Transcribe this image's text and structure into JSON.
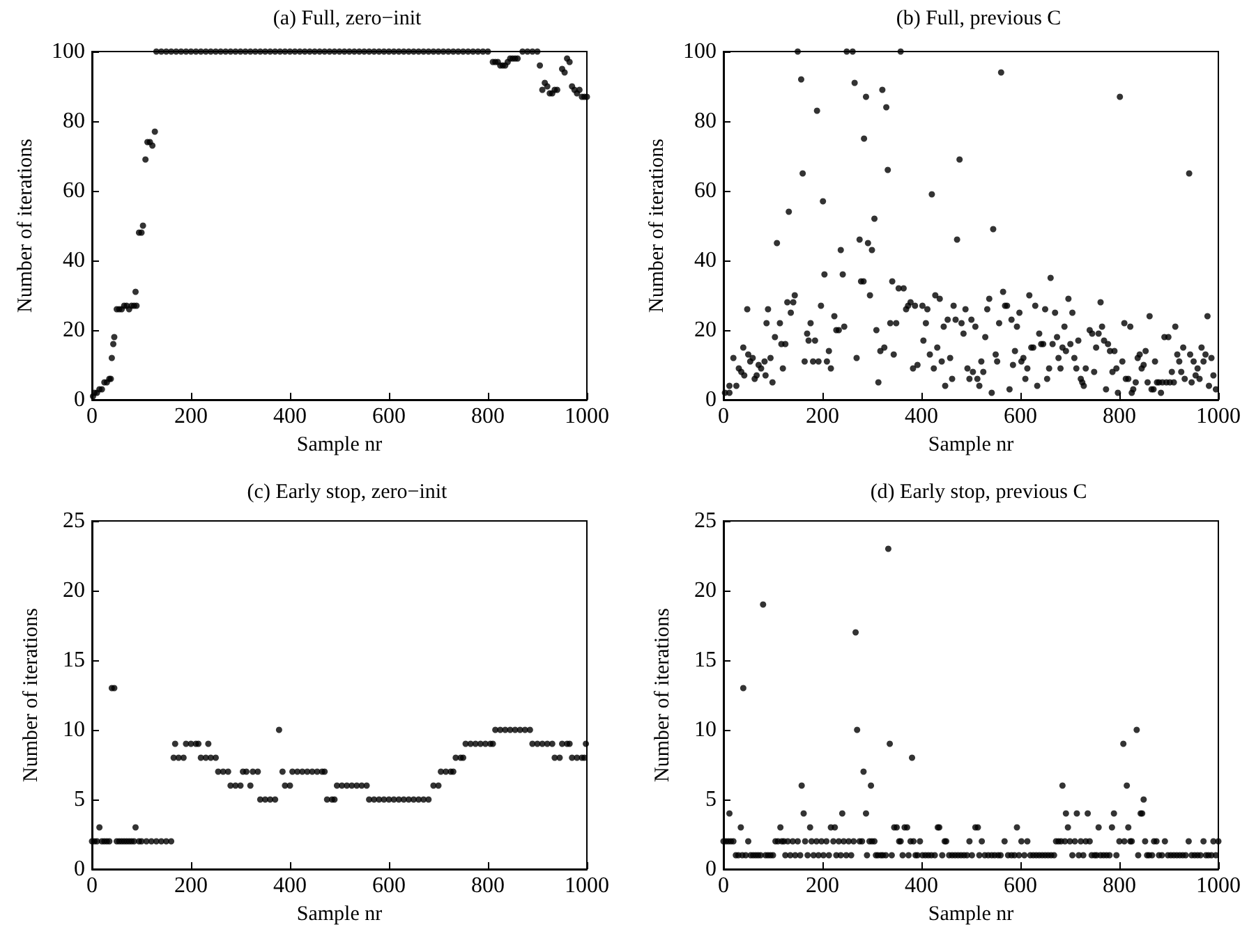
{
  "chart_data": [
    {
      "type": "scatter",
      "title": "(a) Full, zero−init",
      "xlabel": "Sample nr",
      "ylabel": "Number of iterations",
      "marker": "circle",
      "xlim": [
        0,
        1000
      ],
      "xticks": [
        0,
        200,
        400,
        600,
        800,
        1000
      ],
      "ylim": [
        0,
        100
      ],
      "yticks": [
        0,
        20,
        40,
        60,
        80,
        100
      ],
      "series": [
        {
          "color": "#000000",
          "x": [
            2,
            5,
            10,
            15,
            20,
            25,
            30,
            35,
            38,
            40,
            43,
            45,
            50,
            55,
            60,
            65,
            70,
            75,
            80,
            85,
            88,
            90,
            95,
            100,
            103,
            108,
            112,
            117,
            122,
            127,
            130,
            140,
            150,
            160,
            170,
            180,
            190,
            200,
            210,
            220,
            230,
            240,
            250,
            260,
            270,
            280,
            290,
            300,
            310,
            320,
            330,
            340,
            350,
            360,
            370,
            380,
            390,
            400,
            410,
            420,
            430,
            440,
            450,
            460,
            470,
            480,
            490,
            500,
            510,
            520,
            530,
            540,
            550,
            560,
            570,
            580,
            590,
            600,
            610,
            620,
            630,
            640,
            650,
            660,
            670,
            680,
            690,
            700,
            710,
            720,
            730,
            740,
            750,
            760,
            770,
            780,
            790,
            800,
            810,
            815,
            820,
            825,
            830,
            835,
            840,
            845,
            850,
            855,
            860,
            870,
            880,
            890,
            900,
            905,
            910,
            915,
            920,
            925,
            930,
            935,
            940,
            950,
            955,
            960,
            965,
            970,
            975,
            980,
            985,
            990,
            995,
            1000
          ],
          "values": [
            1,
            2,
            2,
            3,
            3,
            5,
            5,
            6,
            6,
            12,
            16,
            18,
            26,
            26,
            26,
            27,
            27,
            26,
            27,
            27,
            31,
            27,
            48,
            48,
            50,
            69,
            74,
            74,
            73,
            77,
            100,
            100,
            100,
            100,
            100,
            100,
            100,
            100,
            100,
            100,
            100,
            100,
            100,
            100,
            100,
            100,
            100,
            100,
            100,
            100,
            100,
            100,
            100,
            100,
            100,
            100,
            100,
            100,
            100,
            100,
            100,
            100,
            100,
            100,
            100,
            100,
            100,
            100,
            100,
            100,
            100,
            100,
            100,
            100,
            100,
            100,
            100,
            100,
            100,
            100,
            100,
            100,
            100,
            100,
            100,
            100,
            100,
            100,
            100,
            100,
            100,
            100,
            100,
            100,
            100,
            100,
            100,
            100,
            97,
            97,
            97,
            96,
            96,
            96,
            97,
            98,
            98,
            98,
            98,
            100,
            100,
            100,
            100,
            96,
            89,
            91,
            90,
            88,
            88,
            89,
            89,
            95,
            94,
            98,
            97,
            90,
            89,
            88,
            89,
            87,
            87,
            87
          ]
        }
      ]
    },
    {
      "type": "scatter",
      "title": "(b) Full, previous C",
      "xlabel": "Sample nr",
      "ylabel": "Number of iterations",
      "marker": "circle",
      "xlim": [
        0,
        1000
      ],
      "xticks": [
        0,
        200,
        400,
        600,
        800,
        1000
      ],
      "ylim": [
        0,
        100
      ],
      "yticks": [
        0,
        20,
        40,
        60,
        80,
        100
      ],
      "series": [
        {
          "color": "#000000",
          "x": [
            3,
            12,
            12,
            20,
            26,
            31,
            36,
            40,
            42,
            48,
            50,
            54,
            59,
            63,
            67,
            71,
            76,
            83,
            85,
            87,
            90,
            95,
            99,
            104,
            108,
            114,
            117,
            125,
            120,
            129,
            132,
            136,
            141,
            144,
            150,
            157,
            160,
            164,
            169,
            172,
            176,
            181,
            185,
            189,
            192,
            197,
            201,
            204,
            209,
            213,
            217,
            224,
            228,
            233,
            237,
            241,
            244,
            249,
            261,
            265,
            269,
            275,
            278,
            283,
            284,
            288,
            292,
            296,
            300,
            305,
            309,
            313,
            317,
            321,
            325,
            329,
            332,
            337,
            341,
            344,
            349,
            354,
            358,
            364,
            369,
            373,
            378,
            383,
            387,
            392,
            402,
            404,
            409,
            412,
            417,
            421,
            425,
            428,
            432,
            437,
            441,
            445,
            448,
            453,
            458,
            462,
            465,
            469,
            472,
            477,
            481,
            485,
            489,
            493,
            497,
            501,
            504,
            509,
            513,
            517,
            521,
            525,
            529,
            533,
            537,
            542,
            545,
            550,
            553,
            557,
            561,
            565,
            569,
            573,
            578,
            582,
            585,
            589,
            593,
            598,
            602,
            606,
            610,
            614,
            618,
            622,
            626,
            630,
            634,
            638,
            642,
            646,
            650,
            654,
            658,
            661,
            665,
            670,
            674,
            677,
            681,
            685,
            689,
            692,
            697,
            701,
            705,
            709,
            713,
            717,
            722,
            725,
            728,
            732,
            740,
            745,
            749,
            753,
            758,
            762,
            765,
            769,
            773,
            777,
            781,
            786,
            790,
            794,
            797,
            801,
            806,
            810,
            813,
            818,
            822,
            825,
            828,
            833,
            837,
            841,
            845,
            849,
            853,
            857,
            861,
            865,
            869,
            872,
            876,
            880,
            884,
            887,
            891,
            895,
            899,
            902,
            906,
            910,
            913,
            917,
            921,
            925,
            929,
            932,
            941,
            943,
            946,
            950,
            954,
            958,
            962,
            966,
            970,
            974,
            978,
            981,
            986,
            990,
            995
          ],
          "values": [
            2,
            2,
            4,
            12,
            4,
            9,
            8,
            15,
            7,
            26,
            13,
            11,
            12,
            6,
            7,
            10,
            9,
            11,
            7,
            22,
            26,
            12,
            5,
            18,
            45,
            22,
            16,
            16,
            9,
            28,
            54,
            25,
            28,
            30,
            100,
            92,
            65,
            11,
            19,
            17,
            22,
            11,
            17,
            83,
            11,
            27,
            57,
            36,
            11,
            14,
            9,
            24,
            20,
            20,
            43,
            36,
            21,
            100,
            100,
            91,
            12,
            46,
            34,
            34,
            75,
            87,
            45,
            30,
            43,
            52,
            20,
            5,
            14,
            89,
            15,
            84,
            66,
            22,
            34,
            13,
            22,
            32,
            100,
            32,
            26,
            27,
            28,
            9,
            27,
            10,
            27,
            17,
            22,
            26,
            13,
            59,
            9,
            30,
            15,
            29,
            11,
            21,
            4,
            23,
            12,
            6,
            27,
            23,
            46,
            69,
            22,
            19,
            26,
            9,
            6,
            23,
            8,
            21,
            6,
            4,
            11,
            8,
            18,
            26,
            29,
            2,
            49,
            13,
            11,
            22,
            94,
            31,
            27,
            27,
            3,
            23,
            10,
            14,
            21,
            25,
            11,
            12,
            6,
            9,
            30,
            15,
            15,
            27,
            4,
            19,
            16,
            16,
            26,
            6,
            9,
            35,
            16,
            25,
            18,
            12,
            9,
            15,
            21,
            14,
            29,
            16,
            25,
            12,
            9,
            17,
            6,
            5,
            4,
            9,
            20,
            19,
            8,
            15,
            19,
            28,
            21,
            17,
            3,
            16,
            14,
            8,
            14,
            9,
            2,
            87,
            11,
            22,
            6,
            6,
            21,
            2,
            3,
            5,
            12,
            13,
            9,
            10,
            14,
            5,
            24,
            3,
            3,
            11,
            5,
            5,
            2,
            5,
            18,
            5,
            18,
            5,
            8,
            5,
            21,
            13,
            11,
            8,
            15,
            6,
            65,
            13,
            5,
            11,
            7,
            9,
            6,
            15,
            11,
            13,
            24,
            4,
            12,
            7,
            3
          ]
        }
      ]
    },
    {
      "type": "scatter",
      "title": "(c) Early stop, zero−init",
      "xlabel": "Sample nr",
      "ylabel": "Number of iterations",
      "marker": "circle",
      "xlim": [
        0,
        1000
      ],
      "xticks": [
        0,
        200,
        400,
        600,
        800,
        1000
      ],
      "ylim": [
        0,
        25
      ],
      "yticks": [
        0,
        5,
        10,
        15,
        20,
        25
      ],
      "series": [
        {
          "color": "#000000",
          "x": [
            0,
            5,
            10,
            15,
            20,
            25,
            30,
            35,
            40,
            45,
            50,
            55,
            60,
            65,
            70,
            75,
            80,
            85,
            88,
            95,
            100,
            110,
            120,
            130,
            140,
            150,
            160,
            165,
            168,
            175,
            185,
            190,
            200,
            210,
            215,
            220,
            230,
            235,
            240,
            250,
            255,
            265,
            275,
            280,
            290,
            300,
            305,
            312,
            320,
            325,
            335,
            340,
            350,
            360,
            370,
            378,
            385,
            390,
            400,
            405,
            415,
            425,
            435,
            445,
            455,
            465,
            470,
            475,
            485,
            490,
            495,
            505,
            515,
            525,
            535,
            545,
            555,
            560,
            570,
            580,
            590,
            600,
            610,
            620,
            630,
            640,
            650,
            660,
            670,
            680,
            690,
            700,
            705,
            715,
            725,
            730,
            735,
            745,
            750,
            755,
            765,
            775,
            785,
            795,
            805,
            810,
            815,
            825,
            835,
            845,
            855,
            865,
            875,
            885,
            890,
            900,
            910,
            920,
            930,
            935,
            945,
            950,
            960,
            965,
            970,
            980,
            990,
            995,
            998
          ],
          "values": [
            2,
            2,
            2,
            3,
            2,
            2,
            2,
            2,
            13,
            13,
            2,
            2,
            2,
            2,
            2,
            2,
            2,
            2,
            3,
            2,
            2,
            2,
            2,
            2,
            2,
            2,
            2,
            8,
            9,
            8,
            8,
            9,
            9,
            9,
            9,
            8,
            8,
            9,
            8,
            8,
            7,
            7,
            7,
            6,
            6,
            6,
            7,
            7,
            6,
            7,
            7,
            5,
            5,
            5,
            5,
            10,
            7,
            6,
            6,
            7,
            7,
            7,
            7,
            7,
            7,
            7,
            7,
            5,
            5,
            5,
            6,
            6,
            6,
            6,
            6,
            6,
            6,
            5,
            5,
            5,
            5,
            5,
            5,
            5,
            5,
            5,
            5,
            5,
            5,
            5,
            6,
            6,
            7,
            7,
            7,
            7,
            8,
            8,
            8,
            9,
            9,
            9,
            9,
            9,
            9,
            9,
            10,
            10,
            10,
            10,
            10,
            10,
            10,
            10,
            9,
            9,
            9,
            9,
            9,
            8,
            8,
            9,
            9,
            9,
            8,
            8,
            8,
            8,
            9
          ]
        }
      ]
    },
    {
      "type": "scatter",
      "title": "(d) Early stop, previous C",
      "xlabel": "Sample nr",
      "ylabel": "Number of iterations",
      "marker": "circle",
      "xlim": [
        0,
        1000
      ],
      "xticks": [
        0,
        200,
        400,
        600,
        800,
        1000
      ],
      "ylim": [
        0,
        25
      ],
      "yticks": [
        0,
        5,
        10,
        15,
        20,
        25
      ],
      "series": [
        {
          "color": "#000000",
          "x": [
            0,
            5,
            10,
            12,
            15,
            20,
            25,
            30,
            35,
            38,
            40,
            45,
            50,
            55,
            60,
            65,
            70,
            75,
            80,
            85,
            90,
            95,
            100,
            105,
            110,
            115,
            118,
            122,
            125,
            130,
            135,
            140,
            145,
            150,
            155,
            158,
            162,
            165,
            170,
            175,
            178,
            182,
            188,
            192,
            198,
            202,
            208,
            213,
            217,
            222,
            225,
            228,
            233,
            237,
            240,
            243,
            248,
            253,
            258,
            263,
            267,
            270,
            275,
            280,
            283,
            288,
            290,
            295,
            298,
            300,
            305,
            308,
            312,
            318,
            322,
            328,
            333,
            336,
            340,
            345,
            350,
            355,
            358,
            362,
            366,
            371,
            374,
            378,
            381,
            384,
            388,
            392,
            397,
            402,
            408,
            414,
            420,
            427,
            433,
            436,
            442,
            447,
            450,
            456,
            462,
            468,
            474,
            480,
            486,
            492,
            497,
            502,
            509,
            514,
            517,
            522,
            528,
            535,
            542,
            548,
            555,
            560,
            568,
            575,
            582,
            588,
            593,
            597,
            602,
            608,
            614,
            620,
            626,
            632,
            638,
            644,
            650,
            656,
            662,
            668,
            672,
            677,
            682,
            685,
            690,
            692,
            696,
            700,
            705,
            710,
            714,
            718,
            722,
            727,
            732,
            736,
            740,
            744,
            750,
            754,
            758,
            762,
            768,
            774,
            780,
            785,
            789,
            794,
            800,
            808,
            810,
            815,
            818,
            822,
            825,
            835,
            838,
            843,
            846,
            849,
            852,
            856,
            860,
            866,
            870,
            875,
            880,
            886,
            892,
            898,
            904,
            910,
            916,
            922,
            928,
            934,
            940,
            946,
            952,
            958,
            964,
            970,
            975,
            980,
            986,
            990,
            995,
            1000
          ],
          "values": [
            2,
            2,
            2,
            4,
            2,
            2,
            1,
            1,
            3,
            1,
            13,
            1,
            2,
            1,
            1,
            1,
            1,
            1,
            19,
            1,
            1,
            1,
            1,
            2,
            2,
            3,
            2,
            2,
            1,
            2,
            1,
            2,
            1,
            2,
            1,
            6,
            4,
            2,
            1,
            3,
            2,
            1,
            2,
            1,
            2,
            1,
            2,
            1,
            3,
            2,
            3,
            1,
            2,
            1,
            4,
            2,
            1,
            2,
            1,
            2,
            17,
            10,
            2,
            2,
            7,
            4,
            1,
            2,
            6,
            2,
            2,
            1,
            1,
            1,
            1,
            1,
            23,
            9,
            1,
            3,
            3,
            2,
            2,
            1,
            3,
            3,
            1,
            2,
            8,
            2,
            1,
            1,
            2,
            1,
            1,
            1,
            1,
            1,
            3,
            3,
            1,
            2,
            2,
            1,
            1,
            1,
            1,
            1,
            1,
            1,
            2,
            1,
            3,
            3,
            1,
            2,
            1,
            1,
            1,
            1,
            1,
            1,
            2,
            1,
            1,
            1,
            3,
            1,
            2,
            1,
            2,
            1,
            1,
            1,
            1,
            1,
            1,
            1,
            1,
            1,
            2,
            2,
            2,
            6,
            2,
            4,
            3,
            2,
            1,
            2,
            4,
            1,
            2,
            1,
            2,
            4,
            2,
            1,
            1,
            1,
            3,
            1,
            1,
            1,
            1,
            3,
            4,
            1,
            2,
            9,
            2,
            6,
            3,
            2,
            2,
            10,
            1,
            4,
            4,
            5,
            2,
            1,
            1,
            1,
            2,
            2,
            1,
            1,
            2,
            1,
            1,
            1,
            1,
            1,
            1,
            1,
            2,
            1,
            1,
            1,
            1,
            2,
            1,
            1,
            1,
            2,
            1,
            2
          ]
        }
      ]
    }
  ]
}
